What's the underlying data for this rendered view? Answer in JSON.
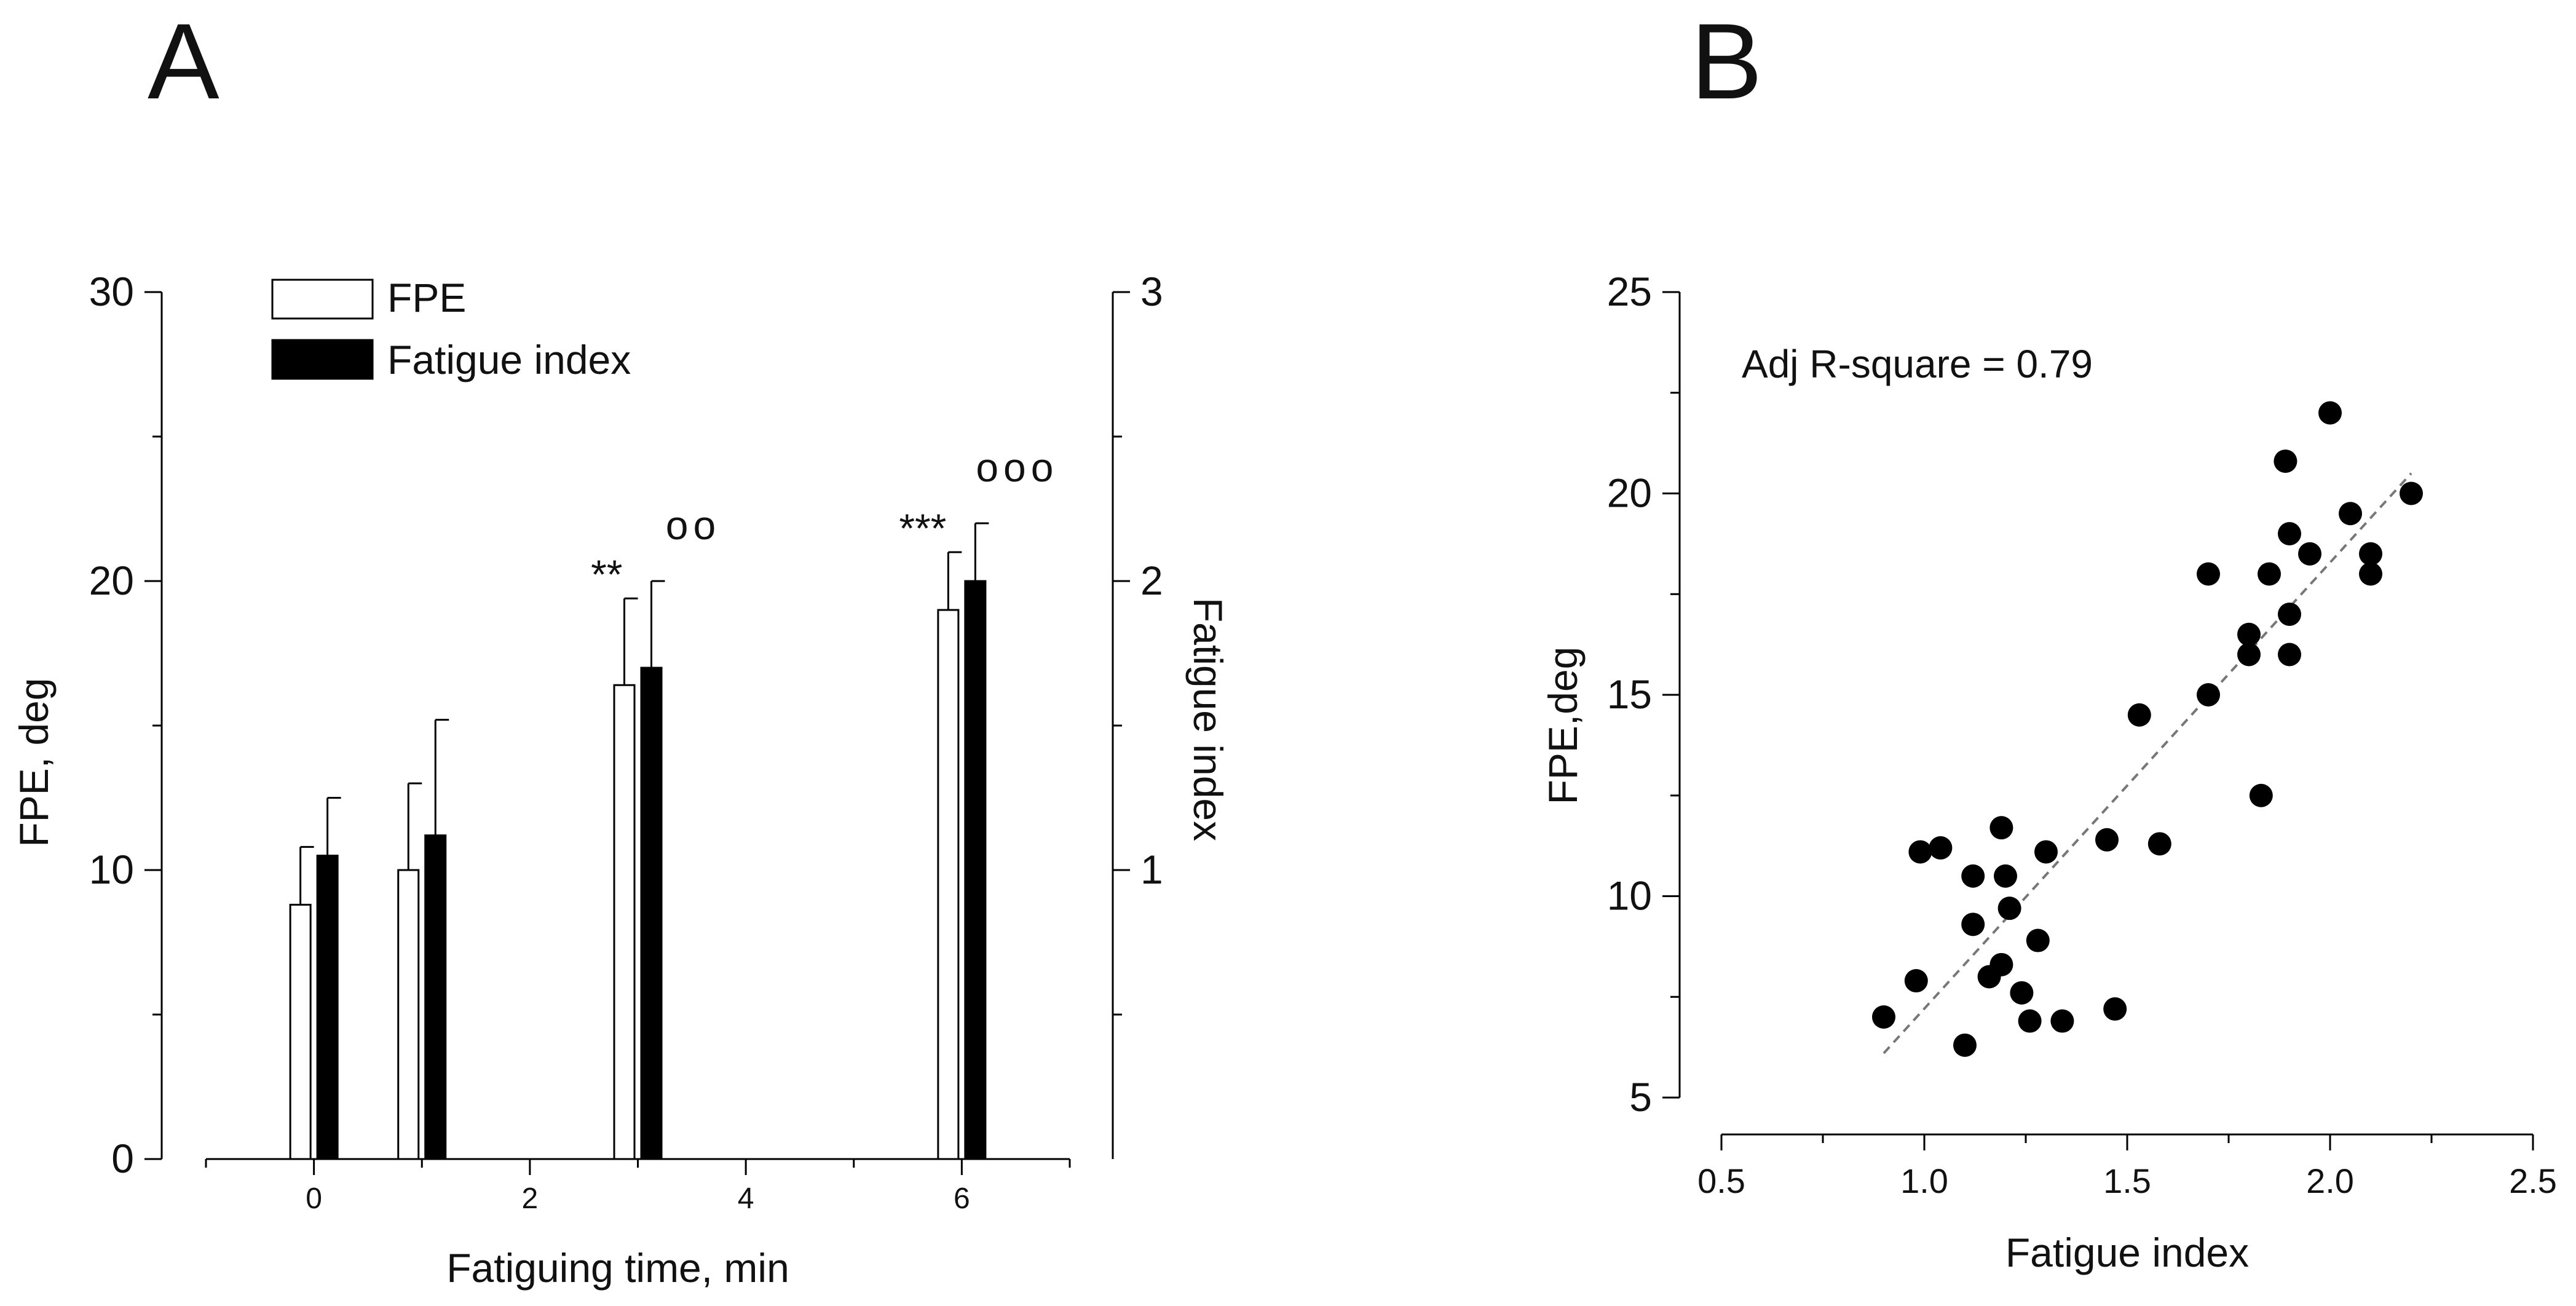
{
  "panels": {
    "a": {
      "letter": "A"
    },
    "b": {
      "letter": "B"
    }
  },
  "chart_data": [
    {
      "type": "bar",
      "panel": "A",
      "title": "",
      "xlabel": "Fatiguing time, min",
      "ylabel": "FPE, deg",
      "y2label": "Fatigue index",
      "xlim": [
        -1,
        7
      ],
      "xticks": [
        "0",
        "2",
        "4",
        "6"
      ],
      "ylim": [
        0,
        30
      ],
      "yticks": [
        "0",
        "10",
        "20",
        "30"
      ],
      "y2lim": [
        0,
        3
      ],
      "y2ticks": [
        "1",
        "2",
        "3"
      ],
      "categories": [
        "0",
        "1",
        "3",
        "6"
      ],
      "x": [
        0,
        1,
        3,
        6
      ],
      "legend": {
        "placement": "top-left"
      },
      "series": [
        {
          "name": "FPE",
          "axis": "left",
          "fill": "#ffffff",
          "values": [
            8.8,
            10.0,
            16.4,
            19.0
          ],
          "errors": [
            2.0,
            3.0,
            3.0,
            2.0
          ]
        },
        {
          "name": "Fatigue index",
          "axis": "right",
          "fill": "#000000",
          "values": [
            1.05,
            1.12,
            1.7,
            2.0
          ],
          "errors": [
            0.2,
            0.4,
            0.3,
            0.2
          ]
        }
      ],
      "annotations": [
        {
          "x": 3,
          "fpe_marker": "**",
          "fatigue_marker": "oo"
        },
        {
          "x": 6,
          "fpe_marker": "***",
          "fatigue_marker": "ooo"
        }
      ]
    },
    {
      "type": "scatter",
      "panel": "B",
      "title": "",
      "xlabel": "Fatigue index",
      "ylabel": "FPE,deg",
      "xlim": [
        0.5,
        2.5
      ],
      "xticks": [
        "0.5",
        "1.0",
        "1.5",
        "2.0",
        "2.5"
      ],
      "ylim": [
        5,
        25
      ],
      "yticks": [
        "5",
        "10",
        "15",
        "20",
        "25"
      ],
      "annotation": "Adj R-square = 0.79",
      "fit_line": {
        "x": [
          0.9,
          2.2
        ],
        "y": [
          6.1,
          20.5
        ],
        "style": "dashed"
      },
      "points": [
        [
          0.9,
          7.0
        ],
        [
          0.98,
          7.9
        ],
        [
          0.99,
          11.1
        ],
        [
          1.04,
          11.2
        ],
        [
          1.1,
          6.3
        ],
        [
          1.12,
          9.3
        ],
        [
          1.12,
          10.5
        ],
        [
          1.16,
          8.0
        ],
        [
          1.19,
          11.7
        ],
        [
          1.19,
          8.3
        ],
        [
          1.2,
          10.5
        ],
        [
          1.21,
          9.7
        ],
        [
          1.24,
          7.6
        ],
        [
          1.26,
          6.9
        ],
        [
          1.28,
          8.9
        ],
        [
          1.3,
          11.1
        ],
        [
          1.34,
          6.9
        ],
        [
          1.45,
          11.4
        ],
        [
          1.47,
          7.2
        ],
        [
          1.53,
          14.5
        ],
        [
          1.58,
          11.3
        ],
        [
          1.7,
          15.0
        ],
        [
          1.7,
          18.0
        ],
        [
          1.8,
          16.5
        ],
        [
          1.8,
          16.0
        ],
        [
          1.83,
          12.5
        ],
        [
          1.85,
          18.0
        ],
        [
          1.89,
          20.8
        ],
        [
          1.9,
          17.0
        ],
        [
          1.9,
          19.0
        ],
        [
          1.9,
          16.0
        ],
        [
          1.95,
          18.5
        ],
        [
          2.0,
          22.0
        ],
        [
          2.05,
          19.5
        ],
        [
          2.1,
          18.5
        ],
        [
          2.1,
          18.0
        ],
        [
          2.2,
          20.0
        ]
      ]
    }
  ]
}
